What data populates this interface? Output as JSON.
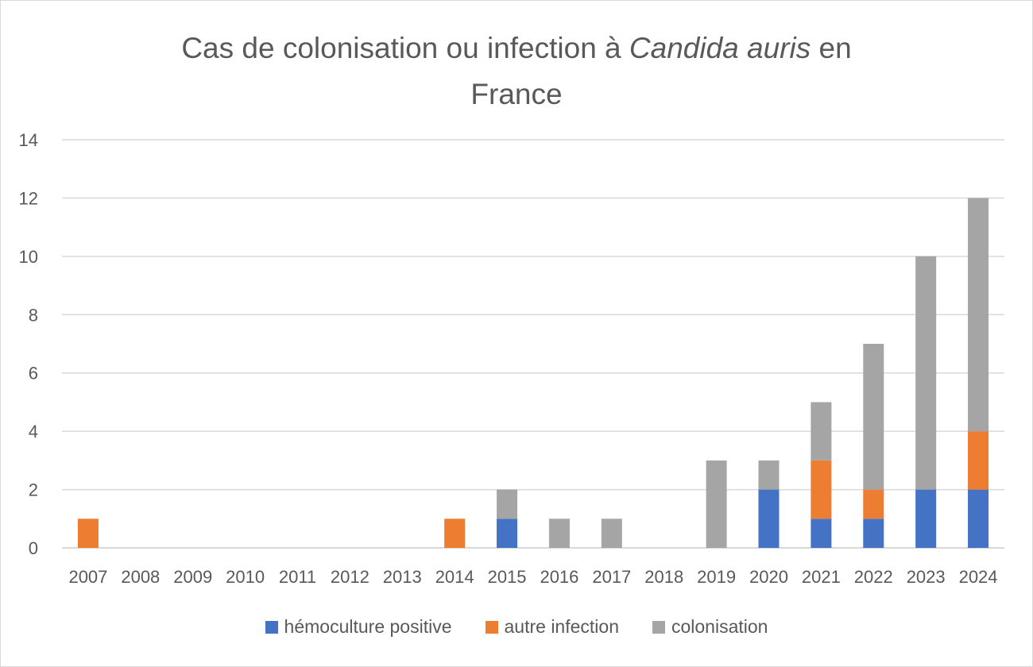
{
  "chart_data": {
    "type": "bar",
    "stacked": true,
    "title_line1_prefix": "Cas de colonisation ou infection à ",
    "title_italic": "Candida auris",
    "title_line1_suffix": " en",
    "title_line2": "France",
    "xlabel": "",
    "ylabel": "",
    "ylim": [
      0,
      14
    ],
    "yticks": [
      "0",
      "2",
      "4",
      "6",
      "8",
      "10",
      "12",
      "14"
    ],
    "grid": true,
    "legend_position": "bottom",
    "categories": [
      "2007",
      "2008",
      "2009",
      "2010",
      "2011",
      "2012",
      "2013",
      "2014",
      "2015",
      "2016",
      "2017",
      "2018",
      "2019",
      "2020",
      "2021",
      "2022",
      "2023",
      "2024"
    ],
    "series": [
      {
        "name": "hémoculture positive",
        "color": "#4472c4",
        "values": [
          0,
          0,
          0,
          0,
          0,
          0,
          0,
          0,
          1,
          0,
          0,
          0,
          0,
          2,
          1,
          1,
          2,
          2
        ]
      },
      {
        "name": "autre infection",
        "color": "#ed7d31",
        "values": [
          1,
          0,
          0,
          0,
          0,
          0,
          0,
          1,
          0,
          0,
          0,
          0,
          0,
          0,
          2,
          1,
          0,
          2
        ]
      },
      {
        "name": "colonisation",
        "color": "#a5a5a5",
        "values": [
          0,
          0,
          0,
          0,
          0,
          0,
          0,
          0,
          1,
          1,
          1,
          0,
          3,
          1,
          2,
          5,
          8,
          8
        ]
      }
    ]
  }
}
